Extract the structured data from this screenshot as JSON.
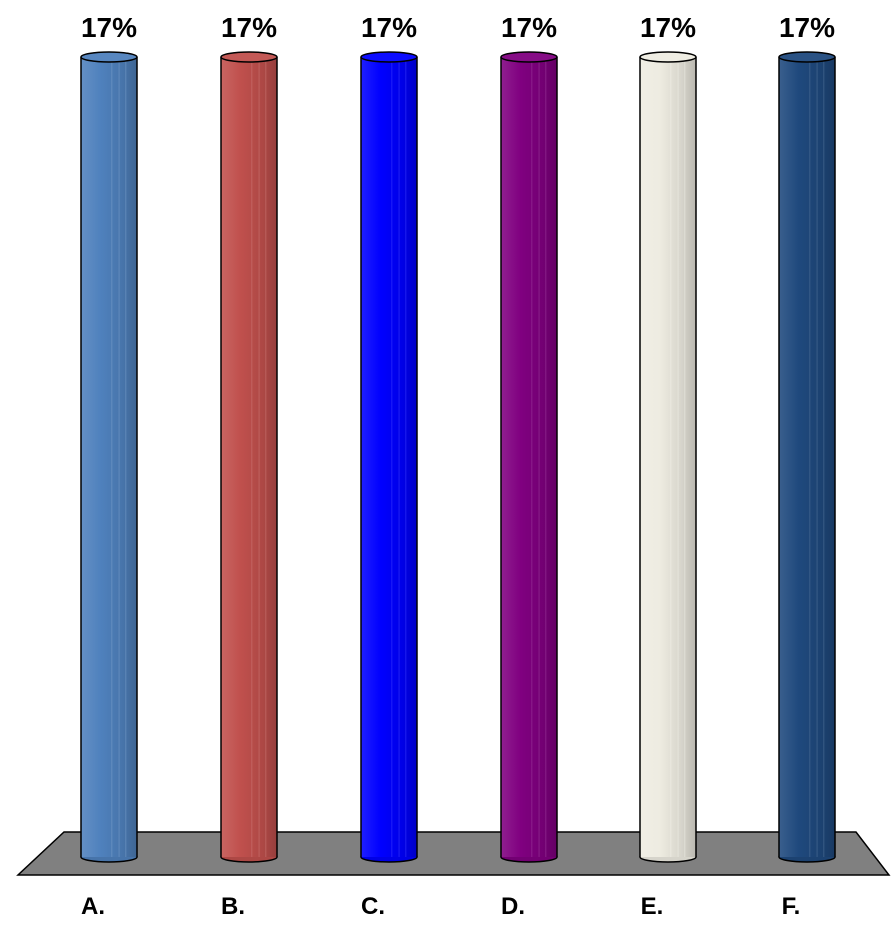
{
  "chart_data": {
    "type": "bar",
    "categories": [
      "A.",
      "B.",
      "C.",
      "D.",
      "E.",
      "F."
    ],
    "values": [
      17,
      17,
      17,
      17,
      17,
      17
    ],
    "data_labels": [
      "17%",
      "17%",
      "17%",
      "17%",
      "17%",
      "17%"
    ],
    "title": "",
    "xlabel": "",
    "ylabel": "",
    "ylim": [
      0,
      17
    ],
    "grid": false,
    "legend": "none",
    "bar_style": "3d-cylinder",
    "floor_color": "#808080",
    "colors": [
      "#4f81bd",
      "#c0504d",
      "#0000ff",
      "#800080",
      "#eeece1",
      "#1f497d"
    ]
  }
}
